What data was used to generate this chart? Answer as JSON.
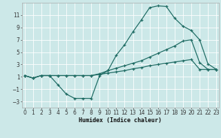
{
  "xlabel": "Humidex (Indice chaleur)",
  "bg_color": "#cce8e8",
  "line_color": "#1e6b63",
  "grid_color": "#b8d8d8",
  "xlim": [
    -0.3,
    23.3
  ],
  "ylim": [
    -4.0,
    13.0
  ],
  "xticks": [
    0,
    1,
    2,
    3,
    4,
    5,
    6,
    7,
    8,
    9,
    10,
    11,
    12,
    13,
    14,
    15,
    16,
    17,
    18,
    19,
    20,
    21,
    22,
    23
  ],
  "yticks": [
    -3,
    -1,
    1,
    3,
    5,
    7,
    9,
    11
  ],
  "curve1_x": [
    0,
    1,
    2,
    3,
    4,
    5,
    6,
    7,
    8,
    9,
    10,
    11,
    12,
    13,
    14,
    15,
    16,
    17,
    18,
    19,
    20,
    21,
    22,
    23
  ],
  "curve1_y": [
    1.2,
    0.8,
    1.2,
    1.2,
    -0.3,
    -1.8,
    -2.5,
    -2.5,
    -2.5,
    1.2,
    2.0,
    4.5,
    6.2,
    8.3,
    10.2,
    12.2,
    12.5,
    12.4,
    10.5,
    9.2,
    8.5,
    7.0,
    3.1,
    2.2
  ],
  "curve2_x": [
    0,
    1,
    2,
    3,
    4,
    5,
    6,
    7,
    8,
    9,
    10,
    11,
    12,
    13,
    14,
    15,
    16,
    17,
    18,
    19,
    20,
    21,
    22,
    23
  ],
  "curve2_y": [
    1.2,
    0.8,
    1.2,
    1.2,
    1.2,
    1.2,
    1.2,
    1.2,
    1.2,
    1.5,
    2.0,
    2.4,
    2.8,
    3.2,
    3.6,
    4.2,
    4.8,
    5.4,
    6.0,
    6.8,
    7.0,
    3.3,
    2.2,
    2.2
  ],
  "curve3_x": [
    0,
    1,
    2,
    3,
    4,
    5,
    6,
    7,
    8,
    9,
    10,
    11,
    12,
    13,
    14,
    15,
    16,
    17,
    18,
    19,
    20,
    21,
    22,
    23
  ],
  "curve3_y": [
    1.2,
    0.8,
    1.2,
    1.2,
    1.2,
    1.2,
    1.2,
    1.2,
    1.2,
    1.4,
    1.6,
    1.8,
    2.0,
    2.3,
    2.5,
    2.8,
    3.0,
    3.2,
    3.4,
    3.6,
    3.8,
    2.2,
    2.2,
    2.2
  ]
}
